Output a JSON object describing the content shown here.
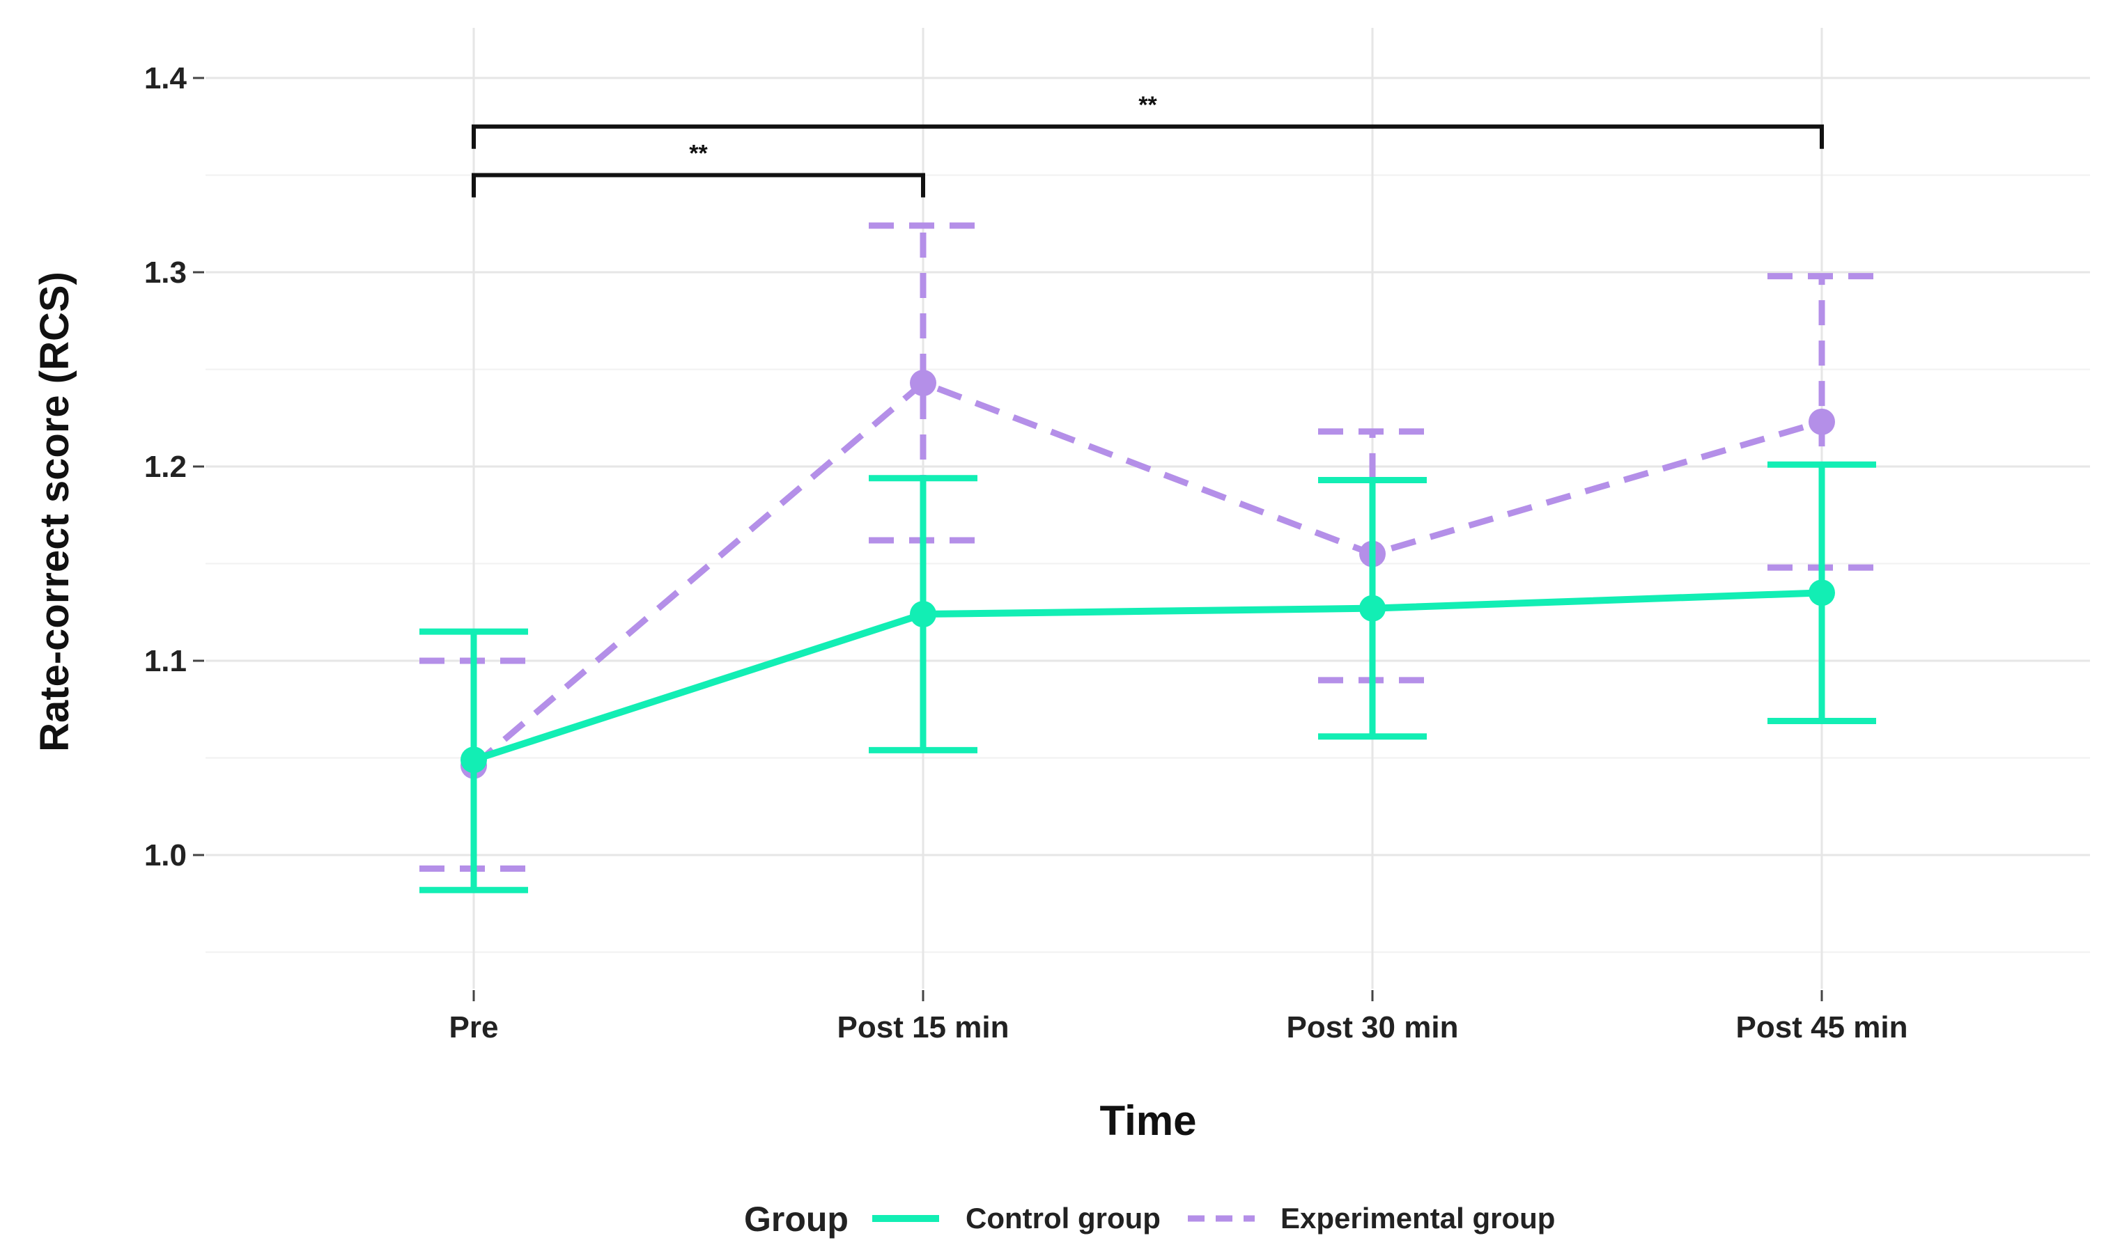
{
  "chart_data": {
    "type": "line",
    "xlabel": "Time",
    "ylabel": "Rate-correct score (RCS)",
    "categories": [
      "Pre",
      "Post 15 min",
      "Post 30 min",
      "Post 45 min"
    ],
    "ylim": [
      0.95,
      1.4
    ],
    "yticks": [
      1.0,
      1.1,
      1.2,
      1.3,
      1.4
    ],
    "ytick_labels": [
      "1.0",
      "1.1",
      "1.2",
      "1.3",
      "1.4"
    ],
    "grid": true,
    "legend": {
      "title": "Group",
      "position": "bottom"
    },
    "series": [
      {
        "name": "Control group",
        "color": "#12EEB4",
        "linestyle": "solid",
        "values": [
          1.049,
          1.124,
          1.127,
          1.135
        ],
        "err_low": [
          0.982,
          1.054,
          1.061,
          1.069
        ],
        "err_high": [
          1.115,
          1.194,
          1.193,
          1.201
        ]
      },
      {
        "name": "Experimental group",
        "color": "#B48FE8",
        "linestyle": "dashed",
        "values": [
          1.046,
          1.243,
          1.155,
          1.223
        ],
        "err_low": [
          0.993,
          1.162,
          1.09,
          1.148
        ],
        "err_high": [
          1.1,
          1.324,
          1.218,
          1.298
        ]
      }
    ],
    "significance": [
      {
        "from": "Pre",
        "to": "Post 15 min",
        "label": "**",
        "y": 1.35
      },
      {
        "from": "Pre",
        "to": "Post 45 min",
        "label": "**",
        "y": 1.375
      }
    ]
  }
}
